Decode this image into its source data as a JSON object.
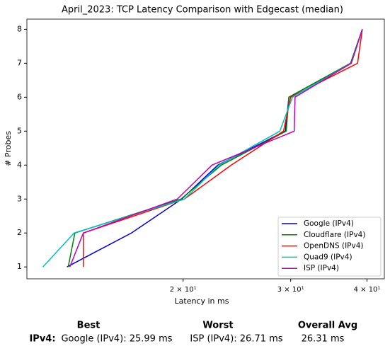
{
  "chart_data": {
    "type": "line",
    "title": "April_2023: TCP Latency Comparison with Edgecast (median)",
    "xlabel": "Latency in ms",
    "ylabel": "# Probes",
    "xscale": "log",
    "xlim": [
      11.1,
      42.7
    ],
    "ylim": [
      0.65,
      8.3
    ],
    "xticks": [
      {
        "value": 20,
        "label": "2 × 10¹"
      },
      {
        "value": 30,
        "label": "3 × 10¹"
      },
      {
        "value": 40,
        "label": "4 × 10¹"
      }
    ],
    "yticks": [
      1,
      2,
      3,
      4,
      5,
      6,
      7,
      8
    ],
    "legend": "lower right",
    "series": [
      {
        "name": "Google (IPv4)",
        "color": "#0000cc",
        "x": [
          12.91,
          16.46,
          19.89,
          22.8,
          29.4,
          29.8,
          37.6,
          39.3
        ],
        "values": [
          1,
          2,
          3,
          4,
          5,
          6,
          7,
          8
        ]
      },
      {
        "name": "Cloudflare (IPv4)",
        "color": "#008000",
        "x": [
          12.97,
          13.3,
          19.84,
          23.1,
          29.5,
          29.8,
          37.6,
          39.3
        ],
        "values": [
          1,
          2,
          3,
          4,
          5,
          6,
          7,
          8
        ]
      },
      {
        "name": "OpenDNS (IPv4)",
        "color": "#ff0000",
        "x": [
          13.73,
          13.73,
          20.1,
          23.98,
          29.2,
          30.0,
          38.6,
          39.3
        ],
        "values": [
          1,
          2,
          3,
          4,
          5,
          6,
          7,
          8
        ]
      },
      {
        "name": "Quad9 (IPv4)",
        "color": "#00bfbf",
        "x": [
          11.79,
          13.26,
          20.1,
          22.9,
          28.8,
          30.2,
          37.7,
          39.3
        ],
        "values": [
          1,
          2,
          3,
          4,
          5,
          6,
          7,
          8
        ]
      },
      {
        "name": "ISP (IPv4)",
        "color": "#bf00bf",
        "x": [
          13.05,
          13.73,
          19.57,
          22.3,
          30.4,
          30.5,
          37.7,
          39.3
        ],
        "values": [
          1,
          2,
          3,
          4,
          5,
          6,
          7,
          8
        ]
      }
    ]
  },
  "summary": {
    "headers": [
      "Best",
      "Worst",
      "Overall Avg"
    ],
    "row": {
      "label": "IPv4:",
      "cells": [
        "Google (IPv4): 25.99 ms",
        "ISP (IPv4): 26.71 ms",
        "26.31 ms"
      ]
    }
  }
}
